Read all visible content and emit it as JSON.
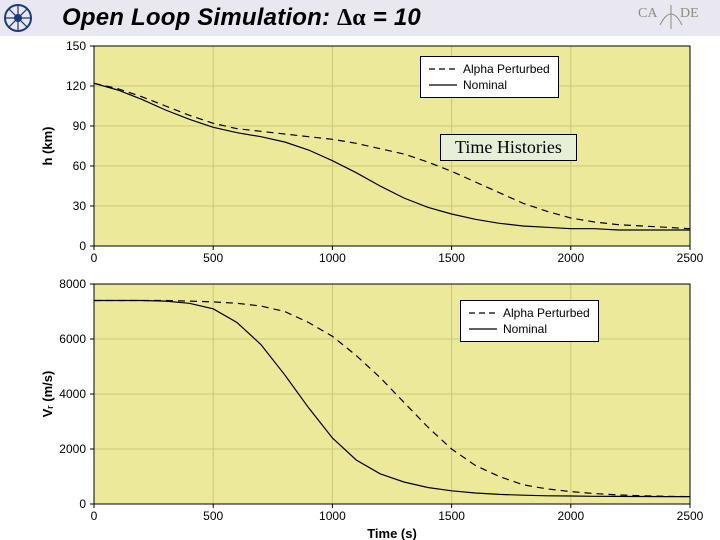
{
  "header": {
    "title_prefix": "Open Loop Simulation: ",
    "title_delta": "Δα",
    "title_suffix": " = 10",
    "title_fontsize": 24,
    "title_color": "#000000",
    "header_bg": "#e9e7f0",
    "logo_name": "iitb-logo",
    "badge_text_left": "CA",
    "badge_text_right": "DE",
    "badge_color": "#8f8c80"
  },
  "figure": {
    "background_color": "#ecea9a",
    "grid_color": "#cac978",
    "axis_line_color": "#000000",
    "tick_fontsize": 12,
    "label_fontsize": 13,
    "line_width_series": 1.2
  },
  "legend": {
    "items": [
      {
        "label": "Alpha Perturbed",
        "style": "dashed",
        "color": "#000000"
      },
      {
        "label": "Nominal",
        "style": "solid",
        "color": "#000000"
      }
    ]
  },
  "annotation": {
    "text": "Time Histories",
    "bg": "#e6f0d6",
    "border": "#000000",
    "font": "Times New Roman",
    "fontsize": 18
  },
  "xaxis": {
    "label": "Time (s)",
    "lim": [
      0,
      2500
    ],
    "ticks": [
      0,
      500,
      1000,
      1500,
      2000,
      2500
    ]
  },
  "top_chart": {
    "ylabel": "h (km)",
    "ylim": [
      0,
      150
    ],
    "yticks": [
      0,
      30,
      60,
      90,
      120,
      150
    ],
    "series": [
      {
        "name": "Alpha Perturbed",
        "style": "dashed",
        "color": "#000000",
        "x": [
          0,
          100,
          200,
          300,
          400,
          500,
          600,
          700,
          800,
          900,
          1000,
          1100,
          1200,
          1300,
          1400,
          1500,
          1600,
          1700,
          1800,
          1900,
          2000,
          2100,
          2200,
          2300,
          2400,
          2500
        ],
        "y": [
          122,
          118,
          112,
          105,
          98,
          92,
          88,
          86,
          84,
          82,
          80,
          77,
          73,
          69,
          63,
          56,
          48,
          40,
          32,
          26,
          21,
          18,
          16,
          15,
          14,
          13
        ]
      },
      {
        "name": "Nominal",
        "style": "solid",
        "color": "#000000",
        "x": [
          0,
          100,
          200,
          300,
          400,
          500,
          600,
          700,
          800,
          900,
          1000,
          1100,
          1200,
          1300,
          1400,
          1500,
          1600,
          1700,
          1800,
          1900,
          2000,
          2100,
          2200,
          2300,
          2400,
          2500
        ],
        "y": [
          122,
          117,
          110,
          102,
          95,
          89,
          85,
          82,
          78,
          72,
          64,
          55,
          45,
          36,
          29,
          24,
          20,
          17,
          15,
          14,
          13,
          13,
          12,
          12,
          12,
          12
        ]
      }
    ]
  },
  "bottom_chart": {
    "ylabel": "Vᵣ (m/s)",
    "ylim": [
      0,
      8000
    ],
    "yticks": [
      0,
      2000,
      4000,
      6000,
      8000
    ],
    "series": [
      {
        "name": "Alpha Perturbed",
        "style": "dashed",
        "color": "#000000",
        "x": [
          0,
          100,
          200,
          300,
          400,
          500,
          600,
          700,
          800,
          900,
          1000,
          1100,
          1200,
          1300,
          1400,
          1500,
          1600,
          1700,
          1800,
          1900,
          2000,
          2100,
          2200,
          2300,
          2400,
          2500
        ],
        "y": [
          7400,
          7400,
          7400,
          7400,
          7380,
          7350,
          7300,
          7200,
          7000,
          6600,
          6100,
          5400,
          4600,
          3700,
          2800,
          2000,
          1400,
          1000,
          700,
          550,
          450,
          380,
          330,
          300,
          280,
          270
        ]
      },
      {
        "name": "Nominal",
        "style": "solid",
        "color": "#000000",
        "x": [
          0,
          100,
          200,
          300,
          400,
          500,
          600,
          700,
          800,
          900,
          1000,
          1100,
          1200,
          1300,
          1400,
          1500,
          1600,
          1700,
          1800,
          1900,
          2000,
          2100,
          2200,
          2300,
          2400,
          2500
        ],
        "y": [
          7400,
          7400,
          7400,
          7380,
          7300,
          7100,
          6600,
          5800,
          4700,
          3500,
          2400,
          1600,
          1100,
          800,
          600,
          480,
          400,
          350,
          320,
          300,
          290,
          280,
          275,
          272,
          270,
          270
        ]
      }
    ]
  }
}
